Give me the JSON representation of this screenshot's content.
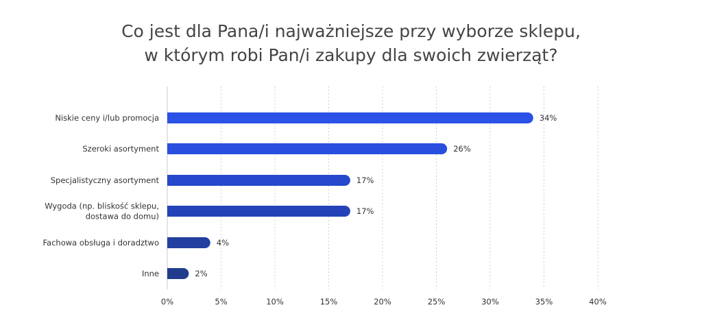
{
  "chart_data": {
    "type": "bar",
    "orientation": "horizontal",
    "title_lines": [
      "Co jest dla Pana/i najważniejsze przy wyborze sklepu,",
      "w którym robi Pan/i zakupy dla swoich zwierząt?"
    ],
    "categories": [
      [
        "Niskie ceny i/lub promocja"
      ],
      [
        "Szeroki asortyment"
      ],
      [
        "Specjalistyczny asortyment"
      ],
      [
        "Wygoda (np. bliskość sklepu,",
        "dostawa do domu)"
      ],
      [
        "Fachowa obsługa i doradztwo"
      ],
      [
        "Inne"
      ]
    ],
    "values": [
      34,
      26,
      17,
      17,
      4,
      2
    ],
    "value_labels": [
      "34%",
      "26%",
      "17%",
      "17%",
      "4%",
      "2%"
    ],
    "bar_colors": [
      "#2b51e6",
      "#2a4fdf",
      "#2648cc",
      "#2443b8",
      "#22409f",
      "#213c8c"
    ],
    "xlim": [
      0,
      40
    ],
    "xticks": [
      0,
      5,
      10,
      15,
      20,
      25,
      30,
      35,
      40
    ],
    "xtick_labels": [
      "0%",
      "5%",
      "10%",
      "15%",
      "20%",
      "25%",
      "30%",
      "35%",
      "40%"
    ],
    "grid": "vertical-dotted",
    "legend": "none",
    "xlabel": "",
    "ylabel": ""
  }
}
